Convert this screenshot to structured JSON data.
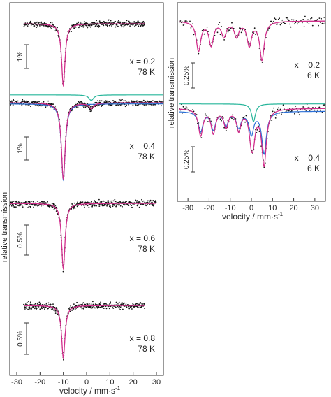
{
  "colors": {
    "frame": "#333333",
    "points": "#111111",
    "fit_total": "#d22e8c",
    "fit_sextet": "#2a6fd6",
    "fit_doublet": "#26b59a",
    "tick": "#333333"
  },
  "ylabel": "relative transmission",
  "chart_data": [
    {
      "type": "scatter",
      "panel": "left",
      "xlabel": "velocity / mm·s",
      "xlabel_sup": "-1",
      "ylabel": "relative transmission",
      "xlim": [
        -33,
        33
      ],
      "xticks": [
        -30,
        -20,
        -10,
        0,
        10,
        20,
        30
      ],
      "xtick_labels": [
        "-30",
        "-20",
        "-10",
        "0",
        "10",
        "20",
        "30"
      ],
      "spectra": [
        {
          "x_label": "x = 0.2",
          "t_label": "78 K",
          "scale_label": "1%",
          "center": -10,
          "depth_pct": 2.6,
          "width": 0.9,
          "doublet": false,
          "data_range": [
            -27,
            25
          ]
        },
        {
          "x_label": "x = 0.4",
          "t_label": "78 K",
          "scale_label": "1%",
          "center": -10,
          "depth_pct": 3.4,
          "width": 1.0,
          "doublet": true,
          "doublet_line": 2,
          "data_range": [
            -33,
            33
          ]
        },
        {
          "x_label": "x = 0.6",
          "t_label": "78 K",
          "scale_label": "0.5%",
          "center": -10,
          "depth_pct": 1.1,
          "width": 0.9,
          "doublet": false,
          "data_range": [
            -33,
            30
          ]
        },
        {
          "x_label": "x = 0.8",
          "t_label": "78 K",
          "scale_label": "0.5%",
          "center": -10,
          "depth_pct": 0.85,
          "width": 0.9,
          "doublet": false,
          "data_range": [
            -27,
            25
          ]
        }
      ]
    },
    {
      "type": "scatter",
      "panel": "right",
      "xlabel": "velocity / mm·s",
      "xlabel_sup": "-1",
      "ylabel": "relative transmission",
      "xlim": [
        -35,
        35
      ],
      "xticks": [
        -30,
        -20,
        -10,
        0,
        10,
        20,
        30
      ],
      "xtick_labels": [
        "-30",
        "-20",
        "-10",
        "0",
        "10",
        "20",
        "30"
      ],
      "spectra": [
        {
          "x_label": "x = 0.2",
          "t_label": "6 K",
          "scale_label": "0.25%",
          "sextet_lines": [
            -25,
            -19,
            -13,
            -7,
            -1,
            5
          ],
          "doublet": false
        },
        {
          "x_label": "x = 0.4",
          "t_label": "6 K",
          "scale_label": "0.25%",
          "sextet_lines": [
            -24,
            -18,
            -12,
            -6,
            0,
            6
          ],
          "doublet": true,
          "doublet_line": 1
        }
      ]
    }
  ]
}
